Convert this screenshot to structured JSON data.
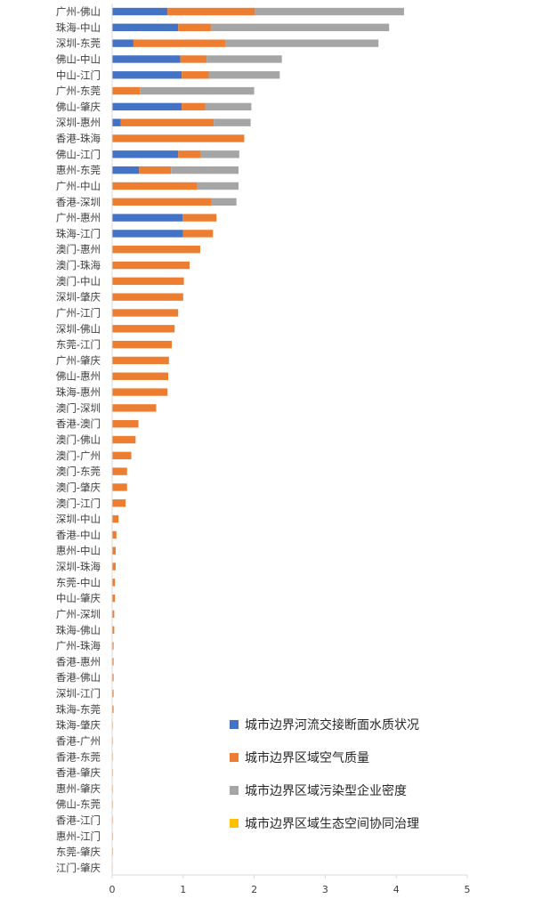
{
  "chart_data": {
    "type": "bar",
    "orientation": "horizontal",
    "stacked": true,
    "title": "",
    "xlabel": "",
    "ylabel": "",
    "xlim": [
      0,
      5
    ],
    "xticks": [
      0,
      1,
      2,
      3,
      4,
      5
    ],
    "grid": false,
    "legend_position": "bottom-right",
    "categories": [
      "广州-佛山",
      "珠海-中山",
      "深圳-东莞",
      "佛山-中山",
      "中山-江门",
      "广州-东莞",
      "佛山-肇庆",
      "深圳-惠州",
      "香港-珠海",
      "佛山-江门",
      "惠州-东莞",
      "广州-中山",
      "香港-深圳",
      "广州-惠州",
      "珠海-江门",
      "澳门-惠州",
      "澳门-珠海",
      "澳门-中山",
      "深圳-肇庆",
      "广州-江门",
      "深圳-佛山",
      "东莞-江门",
      "广州-肇庆",
      "佛山-惠州",
      "珠海-惠州",
      "澳门-深圳",
      "香港-澳门",
      "澳门-佛山",
      "澳门-广州",
      "澳门-东莞",
      "澳门-肇庆",
      "澳门-江门",
      "深圳-中山",
      "香港-中山",
      "惠州-中山",
      "深圳-珠海",
      "东莞-中山",
      "中山-肇庆",
      "广州-深圳",
      "珠海-佛山",
      "广州-珠海",
      "香港-惠州",
      "香港-佛山",
      "深圳-江门",
      "珠海-东莞",
      "珠海-肇庆",
      "香港-广州",
      "香港-东莞",
      "香港-肇庆",
      "惠州-肇庆",
      "佛山-东莞",
      "香港-江门",
      "惠州-江门",
      "东莞-肇庆",
      "江门-肇庆"
    ],
    "series": [
      {
        "name": "城市边界河流交接断面水质状况",
        "color": "#4472C4",
        "values": [
          0.78,
          0.93,
          0.3,
          0.96,
          0.98,
          0,
          0.98,
          0.12,
          0,
          0.93,
          0.38,
          0,
          0,
          0.99,
          1.0,
          0,
          0,
          0,
          0,
          0,
          0,
          0,
          0,
          0,
          0,
          0,
          0,
          0,
          0,
          0,
          0,
          0,
          0,
          0,
          0,
          0,
          0,
          0,
          0,
          0,
          0,
          0,
          0,
          0,
          0,
          0,
          0,
          0,
          0,
          0,
          0,
          0,
          0,
          0,
          0
        ]
      },
      {
        "name": "城市边界区域空气质量",
        "color": "#ED7D31",
        "values": [
          1.23,
          0.46,
          1.3,
          0.37,
          0.38,
          0.39,
          0.33,
          1.31,
          1.86,
          0.32,
          0.45,
          1.2,
          1.4,
          0.48,
          0.42,
          1.24,
          1.09,
          1.01,
          1.0,
          0.93,
          0.88,
          0.84,
          0.8,
          0.79,
          0.78,
          0.62,
          0.37,
          0.33,
          0.27,
          0.21,
          0.21,
          0.19,
          0.09,
          0.06,
          0.05,
          0.05,
          0.04,
          0.04,
          0.03,
          0.03,
          0.02,
          0.02,
          0.02,
          0.02,
          0.02,
          0.01,
          0.01,
          0.01,
          0.01,
          0.01,
          0.01,
          0.01,
          0.01,
          0.01,
          0.005
        ]
      },
      {
        "name": "城市边界区域污染型企业密度",
        "color": "#A5A5A5",
        "values": [
          2.1,
          2.51,
          2.15,
          1.06,
          1.0,
          1.61,
          0.65,
          0.52,
          0,
          0.54,
          0.95,
          0.58,
          0.35,
          0,
          0,
          0,
          0,
          0,
          0,
          0,
          0,
          0,
          0,
          0,
          0,
          0,
          0,
          0,
          0,
          0,
          0,
          0,
          0,
          0,
          0,
          0,
          0,
          0,
          0,
          0,
          0,
          0,
          0,
          0,
          0,
          0,
          0,
          0,
          0,
          0,
          0,
          0,
          0,
          0,
          0
        ]
      },
      {
        "name": "城市边界区域生态空间协同治理",
        "color": "#FFC000",
        "values": [
          0,
          0,
          0,
          0,
          0,
          0,
          0,
          0,
          0,
          0,
          0,
          0,
          0,
          0,
          0,
          0,
          0,
          0,
          0,
          0,
          0,
          0,
          0,
          0,
          0,
          0,
          0,
          0,
          0,
          0,
          0,
          0,
          0,
          0,
          0,
          0,
          0,
          0,
          0,
          0,
          0,
          0,
          0,
          0,
          0,
          0,
          0,
          0,
          0,
          0,
          0,
          0,
          0,
          0,
          0
        ]
      }
    ]
  }
}
